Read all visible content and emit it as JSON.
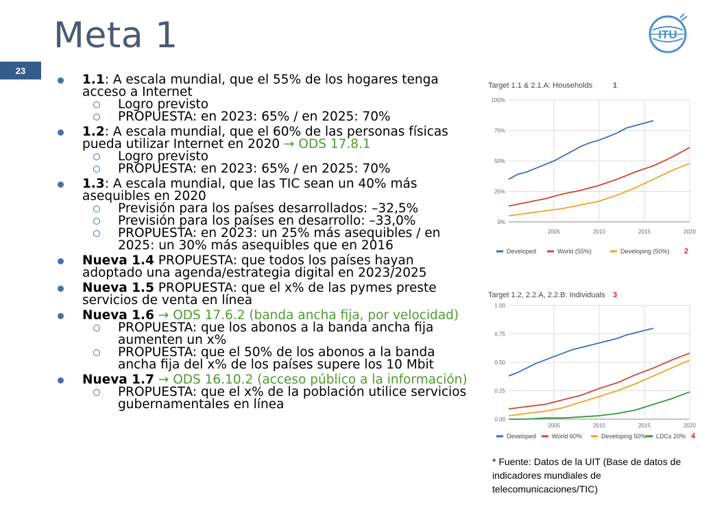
{
  "slide": {
    "title": "Meta 1",
    "page_number": "23",
    "logo_text": "ITU"
  },
  "bullets": [
    {
      "lines": [
        [
          {
            "t": "1.1",
            "b": true
          },
          {
            "t": ": A escala mundial, que el 55% de los hogares tenga"
          }
        ],
        [
          {
            "t": "acceso a Internet"
          }
        ]
      ],
      "subs": [
        [
          [
            {
              "t": "Logro previsto"
            }
          ]
        ],
        [
          [
            {
              "t": "PROPUESTA: en 2023: 65% / en 2025: 70%"
            }
          ]
        ]
      ]
    },
    {
      "lines": [
        [
          {
            "t": "1.2",
            "b": true
          },
          {
            "t": ": A escala mundial, que el 60% de las personas físicas"
          }
        ],
        [
          {
            "t": "pueda utilizar Internet en 2020 "
          },
          {
            "t": "→ ",
            "g": true
          },
          {
            "t": "ODS 17.8.1",
            "g": true
          }
        ]
      ],
      "subs": [
        [
          [
            {
              "t": "Logro previsto"
            }
          ]
        ],
        [
          [
            {
              "t": "PROPUESTA: en 2023: 65% / en 2025: 70%"
            }
          ]
        ]
      ]
    },
    {
      "lines": [
        [
          {
            "t": "1.3",
            "b": true
          },
          {
            "t": ": A escala mundial, que las TIC sean un 40% más"
          }
        ],
        [
          {
            "t": "asequibles en 2020"
          }
        ]
      ],
      "subs": [
        [
          [
            {
              "t": "Previsión para los países desarrollados: –32,5%"
            }
          ]
        ],
        [
          [
            {
              "t": "Previsión para los países en desarrollo: –33,0%"
            }
          ]
        ],
        [
          [
            {
              "t": "PROPUESTA: en 2023: un 25% más asequibles / en"
            }
          ],
          [
            {
              "t": "2025: un 30% más asequibles que en 2016"
            }
          ]
        ]
      ]
    },
    {
      "lines": [
        [
          {
            "t": "Nueva 1.4",
            "b": true
          },
          {
            "t": " PROPUESTA: que todos los países hayan"
          }
        ],
        [
          {
            "t": "adoptado una agenda/estrategia digital en 2023/2025"
          }
        ]
      ],
      "subs": []
    },
    {
      "lines": [
        [
          {
            "t": "Nueva 1.5",
            "b": true
          },
          {
            "t": " PROPUESTA: que el x% de las pymes preste"
          }
        ],
        [
          {
            "t": "servicios de venta en línea"
          }
        ]
      ],
      "subs": []
    },
    {
      "lines": [
        [
          {
            "t": "Nueva 1.6",
            "b": true
          },
          {
            "t": " → ",
            "g": true
          },
          {
            "t": "ODS 17.6.2 (banda ancha fija, por velocidad)",
            "g": true
          }
        ]
      ],
      "subs": [
        [
          [
            {
              "t": "PROPUESTA: que los abonos a la banda ancha fija"
            }
          ],
          [
            {
              "t": "aumenten un x%"
            }
          ]
        ],
        [
          [
            {
              "t": "PROPUESTA: que el 50% de los abonos a la banda"
            }
          ],
          [
            {
              "t": "ancha fija del x% de los países supere los 10 Mbit"
            }
          ]
        ]
      ]
    },
    {
      "lines": [
        [
          {
            "t": "Nueva 1.7",
            "b": true
          },
          {
            "t": " → ",
            "g": true
          },
          {
            "t": "ODS 16.10.2 (acceso público a la información)",
            "g": true
          }
        ]
      ],
      "subs": [
        [
          [
            {
              "t": "PROPUESTA: que el x% de la población utilice servicios"
            }
          ],
          [
            {
              "t": "gubernamentales en línea"
            }
          ]
        ]
      ]
    }
  ],
  "source_note": "* Fuente: Datos de la UIT (Base de datos de indicadores mundiales de telecomunicaciones/TIC)",
  "colors": {
    "title": "#4a5a72",
    "accent": "#355d8c",
    "green": "#4f9a2f",
    "blue": "#3b6cc4",
    "red": "#d4442c",
    "orange": "#f2a122",
    "lime": "#2f9a3a",
    "marker": "#e02020"
  },
  "chart_data": [
    {
      "type": "line",
      "title": "Target 1.1 & 2.1.A: Households",
      "marker": "1",
      "legend_marker": "2",
      "x_ticks": [
        "2005",
        "2010",
        "2015",
        "2020"
      ],
      "y_ticks": [
        "0%",
        "25%",
        "50%",
        "75%",
        "100%"
      ],
      "xlim": [
        2000,
        2020
      ],
      "ylim": [
        0,
        100
      ],
      "grid": true,
      "legend_position": "bottom",
      "series": [
        {
          "name": "Developed",
          "color": "#3b6cc4",
          "x": [
            2000,
            2001,
            2002,
            2003,
            2004,
            2005,
            2006,
            2007,
            2008,
            2009,
            2010,
            2011,
            2012,
            2013,
            2014,
            2015,
            2016
          ],
          "y": [
            35,
            39,
            41,
            44,
            47,
            50,
            54,
            58,
            62,
            65,
            67,
            70,
            73,
            77,
            79,
            81,
            83
          ]
        },
        {
          "name": "World (55%)",
          "color": "#d4442c",
          "x": [
            2000,
            2002,
            2004,
            2006,
            2008,
            2010,
            2012,
            2014,
            2016,
            2018,
            2020
          ],
          "y": [
            13,
            16,
            19,
            23,
            26,
            30,
            35,
            41,
            46,
            53,
            61
          ]
        },
        {
          "name": "Developing (50%)",
          "color": "#f2a122",
          "x": [
            2000,
            2002,
            2004,
            2006,
            2008,
            2010,
            2012,
            2014,
            2016,
            2018,
            2020
          ],
          "y": [
            5,
            7,
            9,
            11,
            14,
            17,
            22,
            28,
            35,
            42,
            48
          ]
        }
      ]
    },
    {
      "type": "line",
      "title": "Target 1.2, 2.2.A, 2.2.B: Individuals",
      "marker": "3",
      "legend_marker": "4",
      "x_ticks": [
        "2005",
        "2010",
        "2015",
        "2020"
      ],
      "y_ticks": [
        "0.00",
        "0.25",
        "0.50",
        "0.75",
        "1.00"
      ],
      "xlim": [
        2000,
        2020
      ],
      "ylim": [
        0,
        1
      ],
      "grid": true,
      "legend_position": "bottom",
      "series": [
        {
          "name": "Developed",
          "color": "#3b6cc4",
          "x": [
            2000,
            2001,
            2002,
            2003,
            2004,
            2005,
            2006,
            2007,
            2008,
            2009,
            2010,
            2011,
            2012,
            2013,
            2014,
            2015,
            2016
          ],
          "y": [
            0.38,
            0.41,
            0.45,
            0.49,
            0.52,
            0.55,
            0.58,
            0.61,
            0.63,
            0.65,
            0.67,
            0.69,
            0.71,
            0.74,
            0.76,
            0.78,
            0.8
          ]
        },
        {
          "name": "World 60%",
          "color": "#d4442c",
          "x": [
            2000,
            2002,
            2004,
            2006,
            2008,
            2010,
            2012,
            2014,
            2016,
            2018,
            2020
          ],
          "y": [
            0.09,
            0.11,
            0.13,
            0.17,
            0.21,
            0.27,
            0.32,
            0.39,
            0.45,
            0.52,
            0.58
          ]
        },
        {
          "name": "Developing 50%",
          "color": "#f2a122",
          "x": [
            2000,
            2002,
            2004,
            2006,
            2008,
            2010,
            2012,
            2014,
            2016,
            2018,
            2020
          ],
          "y": [
            0.03,
            0.05,
            0.07,
            0.1,
            0.15,
            0.2,
            0.25,
            0.31,
            0.38,
            0.45,
            0.52
          ]
        },
        {
          "name": "LDCs 20%",
          "color": "#2f9a3a",
          "x": [
            2000,
            2002,
            2004,
            2006,
            2008,
            2010,
            2012,
            2014,
            2016,
            2018,
            2020
          ],
          "y": [
            0.0,
            0.0,
            0.01,
            0.01,
            0.02,
            0.03,
            0.05,
            0.08,
            0.13,
            0.18,
            0.24
          ]
        }
      ]
    }
  ]
}
